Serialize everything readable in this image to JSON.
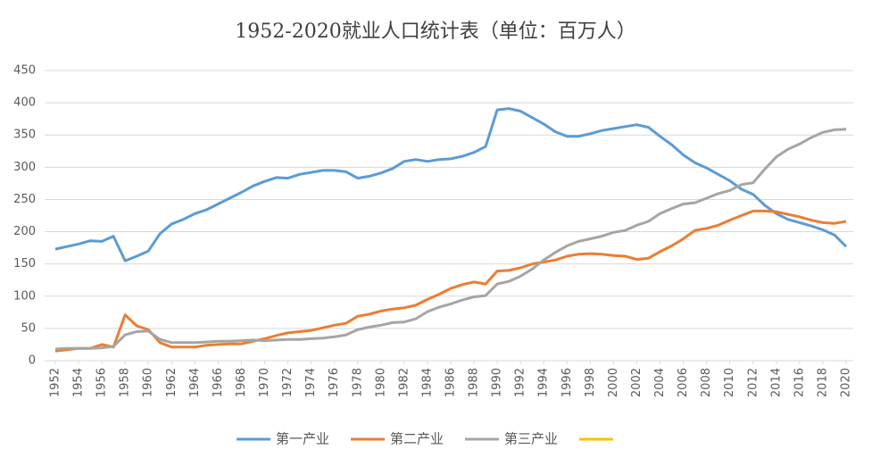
{
  "chart_data": {
    "type": "line",
    "title": "1952-2020就业人口统计表（单位：百万人）",
    "x": [
      1952,
      1953,
      1954,
      1955,
      1956,
      1957,
      1958,
      1959,
      1960,
      1961,
      1962,
      1963,
      1964,
      1965,
      1966,
      1967,
      1968,
      1969,
      1970,
      1971,
      1972,
      1973,
      1974,
      1975,
      1976,
      1977,
      1978,
      1979,
      1980,
      1981,
      1982,
      1983,
      1984,
      1985,
      1986,
      1987,
      1988,
      1989,
      1990,
      1991,
      1992,
      1993,
      1994,
      1995,
      1996,
      1997,
      1998,
      1999,
      2000,
      2001,
      2002,
      2003,
      2004,
      2005,
      2006,
      2007,
      2008,
      2009,
      2010,
      2011,
      2012,
      2013,
      2014,
      2015,
      2016,
      2017,
      2018,
      2019,
      2020
    ],
    "xlim": [
      1952,
      2020
    ],
    "xticks": [
      1952,
      1954,
      1956,
      1958,
      1960,
      1962,
      1964,
      1966,
      1968,
      1970,
      1972,
      1974,
      1976,
      1978,
      1980,
      1982,
      1984,
      1986,
      1988,
      1990,
      1992,
      1994,
      1996,
      1998,
      2000,
      2002,
      2004,
      2006,
      2008,
      2010,
      2012,
      2014,
      2016,
      2018,
      2020
    ],
    "ylim": [
      0,
      450
    ],
    "yticks": [
      0,
      50,
      100,
      150,
      200,
      250,
      300,
      350,
      400,
      450
    ],
    "grid": true,
    "legend": "bottom",
    "series": [
      {
        "name": "第一产业",
        "color": "#5b9bd5",
        "values": [
          173,
          177,
          181,
          186,
          185,
          193,
          155,
          162,
          170,
          197,
          212,
          219,
          228,
          234,
          243,
          252,
          261,
          271,
          278,
          284,
          283,
          289,
          292,
          295,
          295,
          293,
          283,
          286,
          291,
          298,
          309,
          312,
          309,
          312,
          313,
          317,
          323,
          332,
          389,
          391,
          387,
          377,
          367,
          355,
          348,
          348,
          352,
          357,
          360,
          363,
          366,
          362,
          348,
          335,
          319,
          307,
          299,
          289,
          279,
          266,
          258,
          241,
          228,
          219,
          214,
          209,
          203,
          195,
          177
        ]
      },
      {
        "name": "第二产业",
        "color": "#ed7d31",
        "values": [
          15,
          17,
          19,
          19,
          25,
          21,
          71,
          54,
          48,
          28,
          21,
          21,
          21,
          24,
          25,
          26,
          26,
          30,
          34,
          39,
          43,
          45,
          47,
          51,
          55,
          58,
          69,
          72,
          77,
          80,
          82,
          86,
          95,
          103,
          112,
          118,
          122,
          119,
          139,
          140,
          144,
          150,
          153,
          156,
          162,
          165,
          166,
          165,
          163,
          162,
          157,
          159,
          169,
          178,
          189,
          202,
          205,
          210,
          218,
          225,
          232,
          232,
          231,
          227,
          223,
          218,
          214,
          213,
          216
        ]
      },
      {
        "name": "第三产业",
        "color": "#a5a5a5",
        "values": [
          18,
          19,
          19,
          19,
          20,
          22,
          40,
          45,
          46,
          33,
          28,
          28,
          28,
          29,
          30,
          30,
          31,
          32,
          31,
          32,
          33,
          33,
          34,
          35,
          37,
          40,
          48,
          52,
          55,
          59,
          60,
          65,
          76,
          83,
          88,
          94,
          99,
          101,
          119,
          123,
          131,
          142,
          156,
          168,
          178,
          185,
          189,
          193,
          199,
          202,
          210,
          216,
          228,
          236,
          243,
          245,
          252,
          259,
          264,
          273,
          276,
          297,
          316,
          328,
          336,
          346,
          354,
          358,
          359
        ]
      },
      {
        "name": null,
        "color": "#ffc000",
        "values": [
          null,
          null,
          null,
          null,
          null,
          null,
          null,
          null,
          null,
          null,
          null,
          null,
          null,
          null,
          null,
          null,
          null,
          null,
          null,
          null,
          null,
          null,
          null,
          null,
          null,
          null,
          null,
          null,
          null,
          null,
          null,
          null,
          null,
          null,
          null,
          null,
          null,
          null,
          null,
          null,
          null,
          null,
          null,
          null,
          null,
          null,
          null,
          null,
          null,
          null,
          null,
          null,
          null,
          null,
          null,
          null,
          null,
          null,
          null,
          null,
          null,
          null,
          null,
          null,
          null,
          null,
          null,
          null,
          null
        ]
      }
    ]
  }
}
